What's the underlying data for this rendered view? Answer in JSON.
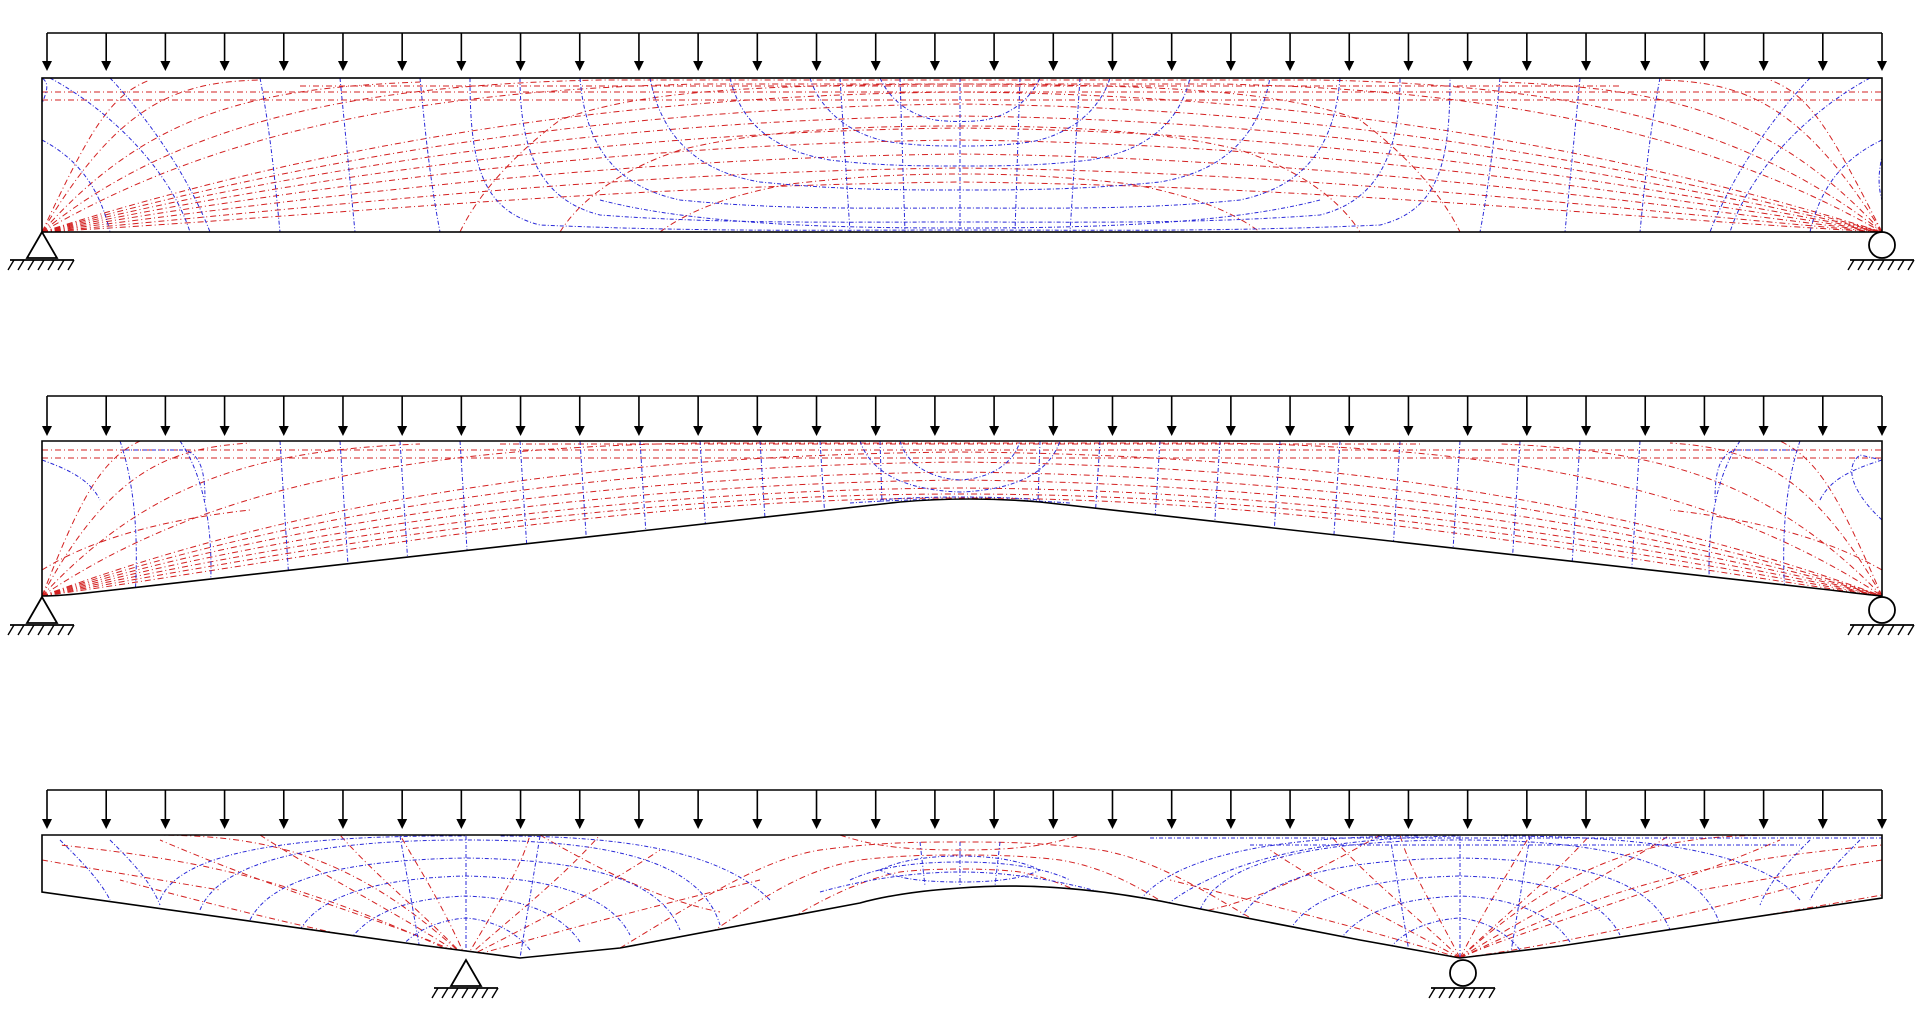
{
  "figure": {
    "colors": {
      "compression_trajectory": "#d32020",
      "tension_trajectory": "#2a2ad8",
      "outline": "#000000",
      "load": "#000000"
    },
    "panels": [
      {
        "id": "panel-1-rectangular-simple-span",
        "beam_shape": "rectangular",
        "supports": [
          "pin-support-icon",
          "roller-support-icon"
        ],
        "load": "uniformly-distributed"
      },
      {
        "id": "panel-2-tapered-simple-span",
        "beam_shape": "haunched-top-tapered-bottom",
        "supports": [
          "pin-support-icon",
          "roller-support-icon"
        ],
        "load": "uniformly-distributed"
      },
      {
        "id": "panel-3-overhanging-two-support",
        "beam_shape": "fish-belly-bottom",
        "supports": [
          "pin-support-icon",
          "roller-support-icon"
        ],
        "load": "uniformly-distributed"
      }
    ]
  }
}
